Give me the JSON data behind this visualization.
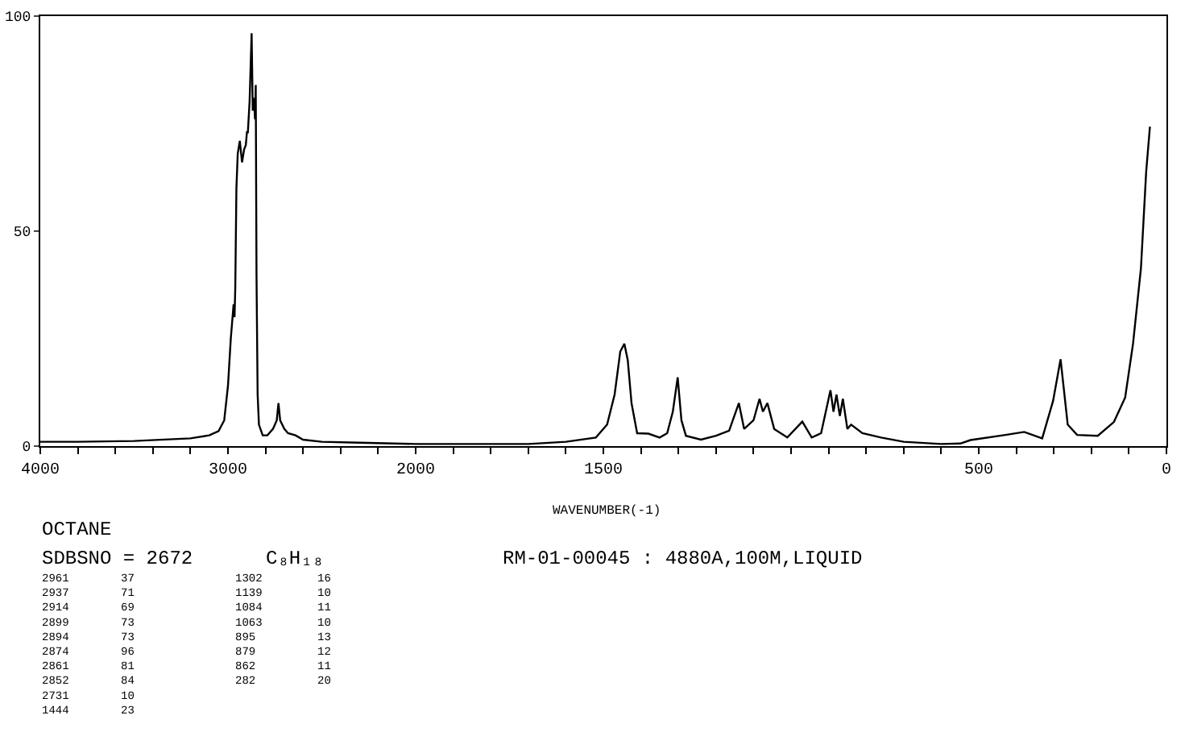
{
  "chart_data": [
    {
      "type": "line",
      "color": "#000000",
      "xlim": [
        4000,
        2000
      ],
      "ylim": [
        0,
        100
      ],
      "yticks": [
        0,
        50,
        100
      ],
      "xticks": [
        4000,
        {
          "value": 3800,
          "label": null
        },
        {
          "value": 3600,
          "label": null
        },
        {
          "value": 3400,
          "label": null
        },
        {
          "value": 3200,
          "label": null
        },
        3000,
        {
          "value": 2800,
          "label": null
        },
        {
          "value": 2600,
          "label": null
        },
        {
          "value": 2400,
          "label": null
        },
        {
          "value": 2200,
          "label": null
        },
        2000
      ],
      "x": [
        4000,
        3800,
        3500,
        3200,
        3100,
        3050,
        3020,
        3000,
        2985,
        2970,
        2965,
        2961,
        2955,
        2948,
        2937,
        2925,
        2914,
        2905,
        2899,
        2894,
        2885,
        2874,
        2868,
        2861,
        2856,
        2852,
        2848,
        2842,
        2835,
        2815,
        2790,
        2760,
        2740,
        2731,
        2722,
        2700,
        2680,
        2640,
        2600,
        2500,
        2300,
        2000
      ],
      "values": [
        1,
        1,
        1.2,
        1.8,
        2.5,
        3.5,
        6,
        14,
        25,
        33,
        30,
        37,
        60,
        68,
        71,
        66,
        69,
        70,
        73,
        73,
        80,
        96,
        78,
        81,
        76,
        84,
        40,
        12,
        5,
        2.5,
        2.5,
        4,
        6,
        10,
        6,
        4,
        3,
        2.5,
        1.5,
        1,
        0.8,
        0.5
      ],
      "annotations": [
        "OCTANE",
        "SDBSNO = 2672",
        "C₈H₁₈",
        "RM-01-00045 : 4880A,100M,LIQUID",
        "2961\n2937\n2914\n2899\n2894\n2874\n2861\n2852\n2731\n1444",
        "37\n71\n69\n73\n73\n96\n81\n84\n10\n23",
        "1302\n1139\n1084\n1063\n895\n879\n862\n282",
        "16\n10\n11\n10\n13\n12\n11\n20"
      ]
    },
    {
      "type": "line",
      "color": "#000000",
      "xlim": [
        2000,
        0
      ],
      "ylim": [
        0,
        100
      ],
      "tick_labels": "x",
      "xticks": [
        {
          "value": 1900,
          "label": null
        },
        {
          "value": 1800,
          "label": null
        },
        {
          "value": 1700,
          "label": null
        },
        {
          "value": 1600,
          "label": null
        },
        1500,
        {
          "value": 1400,
          "label": null
        },
        {
          "value": 1300,
          "label": null
        },
        {
          "value": 1200,
          "label": null
        },
        {
          "value": 1100,
          "label": null
        },
        {
          "value": 1000,
          "label": null
        },
        {
          "value": 900,
          "label": null
        },
        {
          "value": 800,
          "label": null
        },
        {
          "value": 700,
          "label": null
        },
        {
          "value": 600,
          "label": null
        },
        500,
        {
          "value": 400,
          "label": null
        },
        {
          "value": 300,
          "label": null
        },
        {
          "value": 200,
          "label": null
        },
        {
          "value": 100,
          "label": null
        },
        0
      ],
      "x": [
        2000,
        1700,
        1600,
        1520,
        1490,
        1470,
        1455,
        1444,
        1435,
        1425,
        1410,
        1380,
        1350,
        1330,
        1315,
        1302,
        1292,
        1280,
        1240,
        1200,
        1165,
        1139,
        1125,
        1100,
        1084,
        1075,
        1063,
        1045,
        1010,
        970,
        945,
        920,
        895,
        887,
        879,
        870,
        862,
        850,
        840,
        810,
        760,
        700,
        600,
        549,
        522,
        429,
        379,
        331,
        302,
        282,
        263,
        238,
        183,
        140,
        110,
        89,
        68,
        54,
        44
      ],
      "values": [
        0.5,
        0.5,
        1,
        2,
        5,
        12,
        22,
        23.8,
        20,
        10,
        3,
        2.9,
        2,
        3,
        8,
        16,
        6,
        2.4,
        1.5,
        2.4,
        3.6,
        10,
        4,
        6,
        11,
        8,
        10,
        4,
        2,
        5.7,
        2,
        3,
        13,
        8,
        12,
        7,
        11,
        4,
        5,
        3,
        2,
        1,
        0.5,
        0.6,
        1.4,
        2.6,
        3.3,
        1.8,
        10.5,
        20.2,
        5,
        2.6,
        2.4,
        5.6,
        11.3,
        23.8,
        41.3,
        63.8,
        74.3
      ],
      "xlabel": "WAVENUMBER(-1)"
    }
  ]
}
